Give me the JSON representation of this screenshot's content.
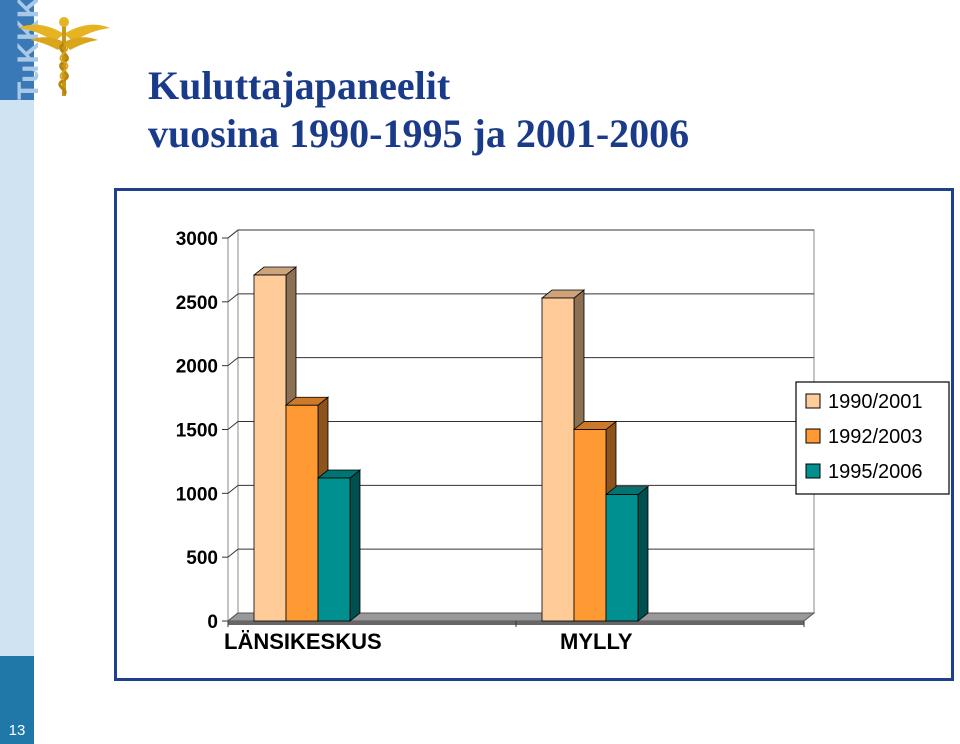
{
  "header": {
    "logo_text": "TuKKK",
    "title_lines": [
      "Kuluttajapaneelit",
      "vuosina 1990-1995 ja 2001-2006"
    ]
  },
  "footer": {
    "page_number": "13"
  },
  "colors": {
    "title": "#1a3a8a",
    "frame": "#1f3e8c",
    "sidebar_dark": "#3a79b8",
    "sidebar_light": "#cfe3f2",
    "sidebar_bottom": "#1f78a8",
    "emblem_gold": "#e6b422"
  },
  "icons": {
    "emblem": "caduceus-emblem-icon"
  },
  "chart_data": {
    "type": "bar",
    "categories": [
      "LÄNSIKESKUS",
      "MYLLY"
    ],
    "series": [
      {
        "name": "1990/2001",
        "values": [
          2710,
          2530
        ],
        "color": "#ffcc99"
      },
      {
        "name": "1992/2003",
        "values": [
          1690,
          1500
        ],
        "color": "#ff9933"
      },
      {
        "name": "1995/2006",
        "values": [
          1120,
          990
        ],
        "color": "#009090"
      }
    ],
    "yticks": [
      0,
      500,
      1000,
      1500,
      2000,
      2500,
      3000
    ],
    "ylim": [
      0,
      3000
    ],
    "title": "",
    "xlabel": "",
    "ylabel": "",
    "grid": true,
    "legend": "right"
  }
}
